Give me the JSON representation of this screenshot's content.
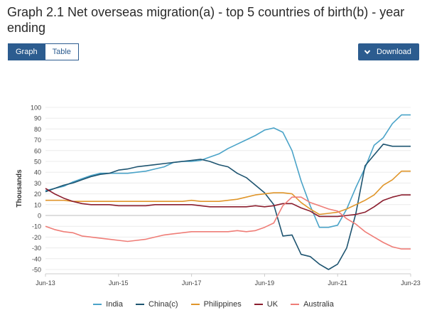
{
  "title": "Graph 2.1 Net overseas migration(a) - top 5 countries of birth(b) - year ending",
  "view_toggle": {
    "graph_label": "Graph",
    "table_label": "Table"
  },
  "download": {
    "label": "Download",
    "icon": "chevron-down-icon"
  },
  "chart_data": {
    "type": "line",
    "ylabel": "Thousands",
    "ylim": [
      -50,
      100
    ],
    "yticks": [
      100,
      90,
      80,
      70,
      60,
      50,
      40,
      30,
      20,
      10,
      0,
      -10,
      -20,
      -30,
      -40,
      -50
    ],
    "xticks": [
      "Jun-13",
      "Jun-15",
      "Jun-17",
      "Jun-19",
      "Jun-21",
      "Jun-23"
    ],
    "grid": true,
    "legend_position": "bottom",
    "x": [
      "Jun-13",
      "Sep-13",
      "Dec-13",
      "Mar-14",
      "Jun-14",
      "Sep-14",
      "Dec-14",
      "Mar-15",
      "Jun-15",
      "Sep-15",
      "Dec-15",
      "Mar-16",
      "Jun-16",
      "Sep-16",
      "Dec-16",
      "Mar-17",
      "Jun-17",
      "Sep-17",
      "Dec-17",
      "Mar-18",
      "Jun-18",
      "Sep-18",
      "Dec-18",
      "Mar-19",
      "Jun-19",
      "Sep-19",
      "Dec-19",
      "Mar-20",
      "Jun-20",
      "Sep-20",
      "Dec-20",
      "Mar-21",
      "Jun-21",
      "Sep-21",
      "Dec-21",
      "Mar-22",
      "Jun-22",
      "Sep-22",
      "Dec-22",
      "Mar-23",
      "Jun-23"
    ],
    "series": [
      {
        "name": "India",
        "color": "#4aa3c8",
        "values": [
          23,
          25,
          27,
          31,
          34,
          37,
          39,
          39,
          39,
          39,
          40,
          41,
          43,
          45,
          49,
          50,
          50,
          51,
          54,
          57,
          62,
          66,
          70,
          74,
          79,
          81,
          77,
          60,
          32,
          9,
          -11,
          -11,
          -9,
          6,
          26,
          44,
          65,
          72,
          85,
          93,
          93
        ]
      },
      {
        "name": "China(c)",
        "color": "#1e5470",
        "values": [
          22,
          25,
          28,
          30,
          33,
          36,
          38,
          39,
          42,
          43,
          45,
          46,
          47,
          48,
          49,
          50,
          51,
          52,
          50,
          47,
          45,
          39,
          35,
          28,
          21,
          10,
          -19,
          -18,
          -36,
          -38,
          -45,
          -50,
          -45,
          -30,
          2,
          46,
          56,
          66,
          64,
          64,
          64
        ]
      },
      {
        "name": "Philippines",
        "color": "#e0962b",
        "values": [
          14,
          14,
          14,
          13,
          13,
          13,
          13,
          13,
          13,
          13,
          13,
          13,
          13,
          13,
          13,
          13,
          14,
          13,
          13,
          13,
          14,
          15,
          17,
          19,
          20,
          21,
          21,
          20,
          12,
          6,
          1,
          2,
          3,
          6,
          10,
          14,
          19,
          28,
          33,
          41,
          41
        ]
      },
      {
        "name": "UK",
        "color": "#8b1e2e",
        "values": [
          25,
          20,
          16,
          13,
          11,
          10,
          10,
          10,
          9,
          9,
          9,
          9,
          10,
          10,
          10,
          10,
          10,
          9,
          8,
          8,
          8,
          8,
          8,
          9,
          8,
          9,
          11,
          11,
          7,
          4,
          -1,
          -1,
          -1,
          0,
          1,
          3,
          8,
          14,
          17,
          19,
          19
        ]
      },
      {
        "name": "Australia",
        "color": "#ef7d77",
        "values": [
          -10,
          -13,
          -15,
          -16,
          -19,
          -20,
          -21,
          -22,
          -23,
          -24,
          -23,
          -22,
          -20,
          -18,
          -17,
          -16,
          -15,
          -15,
          -15,
          -15,
          -15,
          -14,
          -15,
          -14,
          -11,
          -7,
          9,
          17,
          17,
          12,
          9,
          6,
          4,
          -3,
          -8,
          -15,
          -20,
          -25,
          -29,
          -31,
          -31
        ]
      }
    ]
  }
}
